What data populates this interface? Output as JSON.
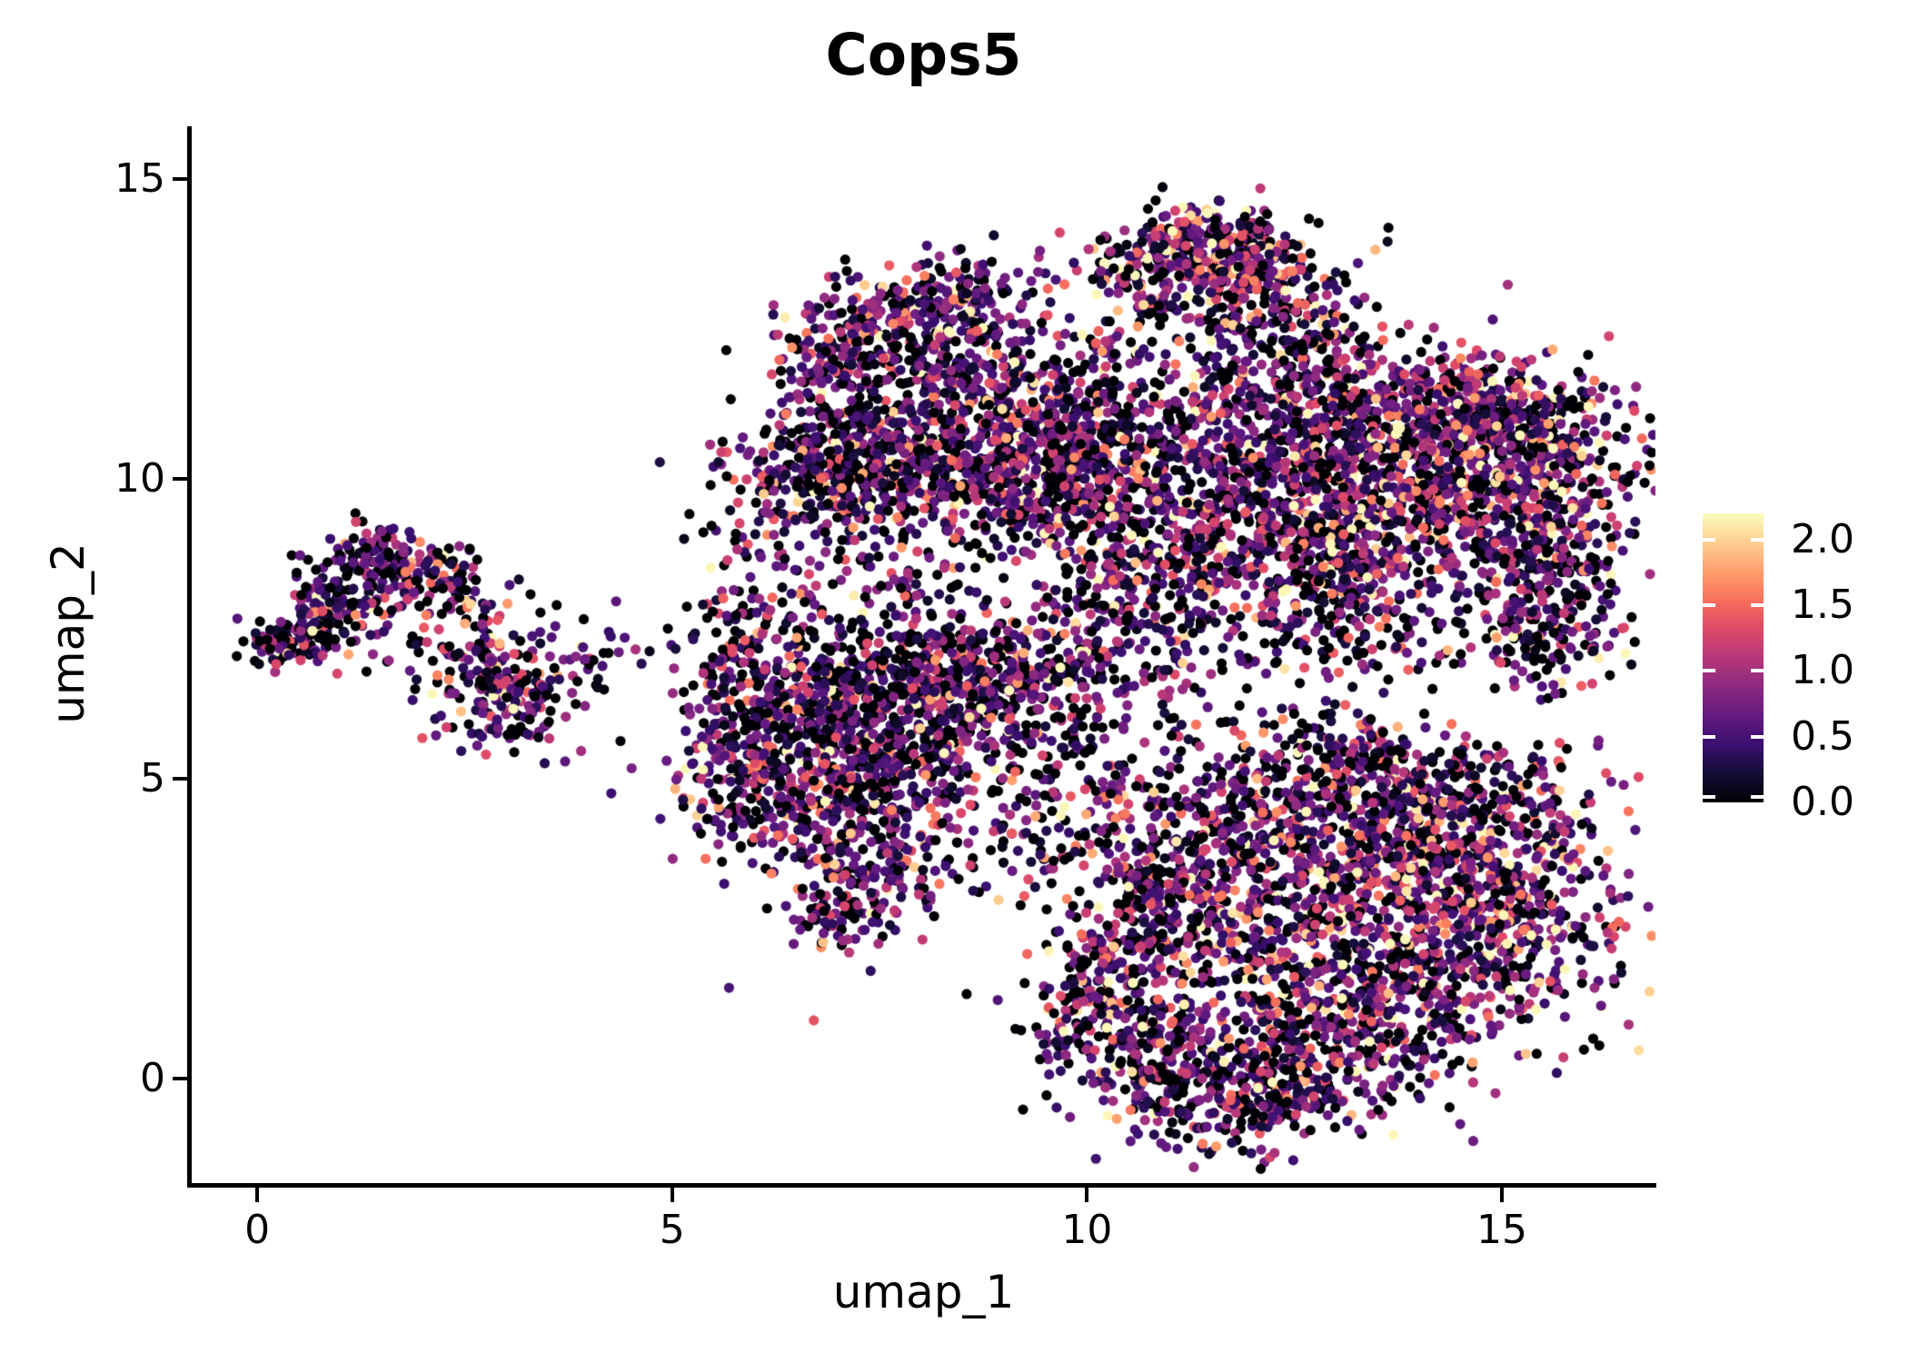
{
  "title": "Cops5",
  "panel": {
    "background": "#ffffff",
    "axis_color": "#000000",
    "text_color": "#000000"
  },
  "axes": {
    "x": {
      "label": "umap_1",
      "ticks": [
        0,
        5,
        10,
        15
      ],
      "domain": [
        -0.79,
        16.85
      ]
    },
    "y": {
      "label": "umap_2",
      "ticks": [
        0,
        5,
        10,
        15
      ],
      "domain": [
        -1.79,
        15.86
      ]
    }
  },
  "colorbar": {
    "tick_labels": [
      "2.0",
      "1.5",
      "1.0",
      "0.5",
      "0.0"
    ],
    "tick_values": [
      2.0,
      1.5,
      1.0,
      0.5,
      0.0
    ],
    "vmin": 0.0,
    "vmax": 2.2,
    "colormap": "magma",
    "stops": [
      "#000004",
      "#140e36",
      "#3b0f70",
      "#641a80",
      "#8c2981",
      "#b73779",
      "#de4968",
      "#f7705c",
      "#fe9f6d",
      "#fecf92",
      "#fcfdbf"
    ]
  },
  "chart_data": {
    "type": "scatter",
    "title": "Cops5",
    "xlabel": "umap_1",
    "ylabel": "umap_2",
    "xlim": [
      -0.79,
      16.85
    ],
    "ylim": [
      -1.79,
      15.86
    ],
    "grid": false,
    "legend_position": "right-colorbar",
    "color_scale": {
      "vmin": 0.0,
      "vmax": 2.2,
      "colormap": "magma"
    },
    "point_radius_px": 5.6,
    "seed": 42,
    "value_model": {
      "default_zero_prob": 0.27,
      "gamma_shape": 2,
      "default_gamma_scale": 0.4,
      "max_value": 2.17
    },
    "clusters_format": [
      "center_x",
      "center_y",
      "sigma_x",
      "sigma_y",
      "n_points",
      "rotation_deg",
      "zero_prob",
      "gamma_scale"
    ],
    "clusters": [
      [
        0.42,
        7.3,
        0.3,
        0.22,
        85,
        0,
        0.29,
        0.4
      ],
      [
        0.95,
        7.8,
        0.38,
        0.42,
        110,
        0,
        0.29,
        0.4
      ],
      [
        1.38,
        8.62,
        0.36,
        0.3,
        120,
        0,
        0.29,
        0.4
      ],
      [
        2.05,
        8.25,
        0.45,
        0.28,
        100,
        0,
        0.29,
        0.4
      ],
      [
        2.6,
        7.15,
        0.3,
        0.35,
        55,
        0,
        0.29,
        0.4
      ],
      [
        3.0,
        6.4,
        0.5,
        0.42,
        180,
        0,
        0.29,
        0.4
      ],
      [
        3.85,
        7.1,
        0.35,
        0.4,
        22,
        0,
        0.35,
        0.38
      ],
      [
        4.6,
        7.05,
        0.18,
        0.15,
        4,
        0,
        0.3,
        0.45
      ],
      [
        5.95,
        6.9,
        0.4,
        0.85,
        190,
        0,
        0.27,
        0.4
      ],
      [
        6.8,
        5.9,
        0.65,
        0.85,
        330,
        0,
        0.27,
        0.4
      ],
      [
        7.7,
        6.35,
        0.65,
        0.8,
        330,
        0,
        0.27,
        0.4
      ],
      [
        7.2,
        4.7,
        0.85,
        0.55,
        260,
        0,
        0.27,
        0.4
      ],
      [
        7.3,
        3.3,
        0.55,
        0.5,
        170,
        0,
        0.27,
        0.4
      ],
      [
        7.0,
        2.62,
        0.3,
        0.22,
        35,
        0,
        0.27,
        0.4
      ],
      [
        8.6,
        6.6,
        0.55,
        0.6,
        170,
        0,
        0.27,
        0.4
      ],
      [
        5.75,
        4.95,
        0.4,
        0.5,
        100,
        0,
        0.27,
        0.4
      ],
      [
        7.4,
        5.8,
        1.5,
        1.4,
        170,
        0,
        0.33,
        0.4
      ],
      [
        7.3,
        8.8,
        1.1,
        0.45,
        110,
        0,
        0.33,
        0.4
      ],
      [
        9.3,
        6.9,
        0.6,
        0.5,
        90,
        0,
        0.3,
        0.4
      ],
      [
        9.9,
        6.6,
        1.0,
        0.85,
        190,
        0,
        0.36,
        0.38
      ],
      [
        9.6,
        5.2,
        0.7,
        0.55,
        55,
        0,
        0.36,
        0.38
      ],
      [
        10.4,
        7.9,
        0.7,
        0.55,
        120,
        0,
        0.31,
        0.42
      ],
      [
        7.55,
        10.25,
        0.9,
        0.42,
        430,
        0,
        0.26,
        0.42
      ],
      [
        8.35,
        11.2,
        0.85,
        0.65,
        300,
        0,
        0.27,
        0.4
      ],
      [
        7.95,
        12.3,
        0.8,
        0.55,
        280,
        0,
        0.27,
        0.4
      ],
      [
        8.5,
        13.0,
        0.5,
        0.33,
        130,
        0,
        0.26,
        0.44
      ],
      [
        7.0,
        11.3,
        0.35,
        0.75,
        130,
        0,
        0.27,
        0.4
      ],
      [
        9.3,
        10.9,
        0.5,
        0.7,
        150,
        0,
        0.27,
        0.4
      ],
      [
        6.95,
        9.8,
        0.45,
        0.35,
        110,
        0,
        0.27,
        0.4
      ],
      [
        9.0,
        9.7,
        0.7,
        0.4,
        120,
        0,
        0.3,
        0.4
      ],
      [
        11.5,
        14.05,
        0.5,
        0.3,
        140,
        0,
        0.25,
        0.46
      ],
      [
        10.9,
        13.4,
        0.5,
        0.42,
        180,
        0,
        0.25,
        0.46
      ],
      [
        11.9,
        13.5,
        0.55,
        0.4,
        170,
        0,
        0.26,
        0.44
      ],
      [
        12.6,
        12.5,
        0.6,
        0.4,
        150,
        -35,
        0.27,
        0.42
      ],
      [
        13.5,
        9.9,
        1.35,
        0.9,
        800,
        0,
        0.24,
        0.46
      ],
      [
        12.1,
        10.75,
        1.05,
        0.6,
        380,
        0,
        0.26,
        0.42
      ],
      [
        14.9,
        10.3,
        0.75,
        0.75,
        330,
        0,
        0.24,
        0.46
      ],
      [
        15.5,
        8.9,
        0.48,
        0.85,
        240,
        0,
        0.26,
        0.42
      ],
      [
        15.55,
        7.4,
        0.4,
        0.5,
        130,
        0,
        0.28,
        0.4
      ],
      [
        10.9,
        9.3,
        0.85,
        0.7,
        300,
        0,
        0.28,
        0.4
      ],
      [
        12.6,
        8.6,
        1.0,
        0.55,
        300,
        0,
        0.27,
        0.42
      ],
      [
        13.2,
        7.5,
        0.9,
        0.45,
        150,
        0,
        0.33,
        0.4
      ],
      [
        13.6,
        11.45,
        1.5,
        0.45,
        320,
        -18,
        0.26,
        0.42
      ],
      [
        10.3,
        11.2,
        0.6,
        0.6,
        150,
        0,
        0.31,
        0.4
      ],
      [
        9.9,
        10.3,
        0.5,
        0.5,
        150,
        0,
        0.28,
        0.4
      ],
      [
        15.0,
        11.3,
        0.6,
        0.4,
        120,
        -20,
        0.26,
        0.42
      ],
      [
        13.4,
        2.9,
        1.3,
        1.15,
        950,
        0,
        0.22,
        0.48
      ],
      [
        14.9,
        2.8,
        0.8,
        1.05,
        400,
        0,
        0.22,
        0.48
      ],
      [
        12.4,
        4.6,
        1.15,
        0.55,
        300,
        0,
        0.26,
        0.42
      ],
      [
        11.35,
        3.5,
        0.7,
        0.65,
        250,
        0,
        0.27,
        0.42
      ],
      [
        10.6,
        2.4,
        0.5,
        0.8,
        190,
        0,
        0.27,
        0.42
      ],
      [
        10.05,
        1.05,
        0.45,
        0.6,
        150,
        0,
        0.26,
        0.44
      ],
      [
        11.0,
        0.45,
        0.55,
        0.5,
        170,
        0,
        0.27,
        0.42
      ],
      [
        11.5,
        -0.5,
        0.6,
        0.4,
        130,
        0,
        0.26,
        0.42
      ],
      [
        12.3,
        -0.15,
        0.7,
        0.4,
        180,
        0,
        0.26,
        0.42
      ],
      [
        13.3,
        0.9,
        0.9,
        0.65,
        320,
        0,
        0.25,
        0.44
      ],
      [
        14.6,
        4.7,
        0.8,
        0.5,
        200,
        0,
        0.26,
        0.42
      ],
      [
        13.0,
        5.35,
        0.6,
        0.4,
        120,
        0,
        0.33,
        0.4
      ],
      [
        9.55,
        4.0,
        0.55,
        0.55,
        55,
        0,
        0.36,
        0.38
      ]
    ]
  }
}
